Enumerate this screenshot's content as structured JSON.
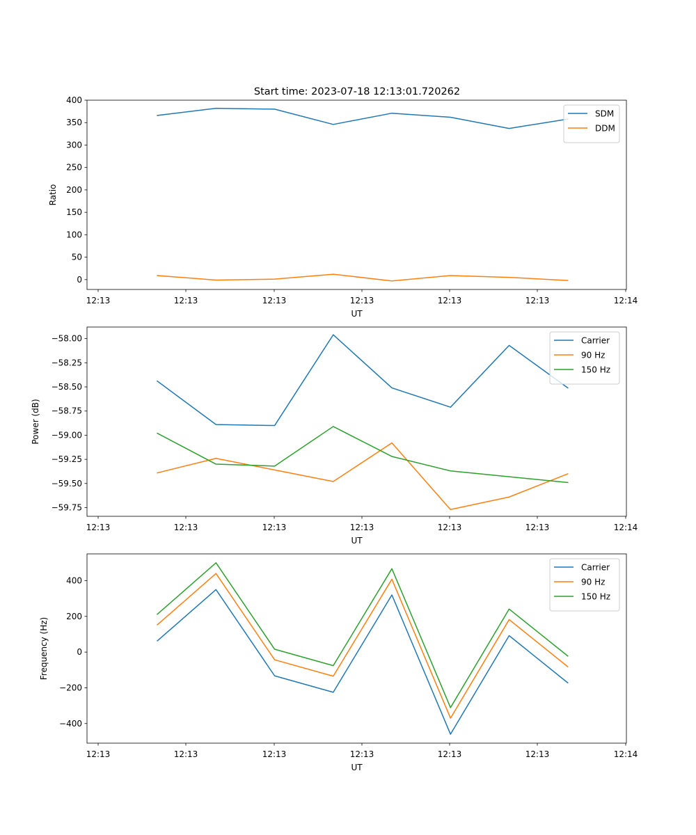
{
  "figure": {
    "title": "Start time: 2023-07-18 12:13:01.720262"
  },
  "chart_data": [
    {
      "type": "line",
      "title": "Start time: 2023-07-18 12:13:01.720262",
      "xlabel": "UT",
      "ylabel": "Ratio",
      "x_tick_labels": [
        "12:13",
        "12:13",
        "12:13",
        "12:13",
        "12:13",
        "12:13",
        "12:14"
      ],
      "x": [
        1,
        2,
        3,
        4,
        5,
        6,
        7,
        8
      ],
      "xlim": [
        -0.2,
        9.0
      ],
      "ylim": [
        -22,
        400
      ],
      "yticks": [
        0,
        50,
        100,
        150,
        200,
        250,
        300,
        350,
        400
      ],
      "y_tick_labels": [
        "0",
        "50",
        "100",
        "150",
        "200",
        "250",
        "300",
        "350",
        "400"
      ],
      "legend_location": "upper right",
      "series": [
        {
          "name": "SDM",
          "color": "#1f77b4",
          "values": [
            366,
            382,
            380,
            346,
            371,
            362,
            337,
            358
          ]
        },
        {
          "name": "DDM",
          "color": "#ff7f0e",
          "values": [
            9,
            -1,
            1,
            12,
            -3,
            9,
            5,
            -2
          ]
        }
      ]
    },
    {
      "type": "line",
      "title": "",
      "xlabel": "UT",
      "ylabel": "Power (dB)",
      "x_tick_labels": [
        "12:13",
        "12:13",
        "12:13",
        "12:13",
        "12:13",
        "12:13",
        "12:14"
      ],
      "x": [
        1,
        2,
        3,
        4,
        5,
        6,
        7,
        8
      ],
      "xlim": [
        -0.2,
        9.0
      ],
      "ylim": [
        -59.84,
        -57.88
      ],
      "yticks": [
        -58.0,
        -58.25,
        -58.5,
        -58.75,
        -59.0,
        -59.25,
        -59.5,
        -59.75
      ],
      "y_tick_labels": [
        "−58.00",
        "−58.25",
        "−58.50",
        "−58.75",
        "−59.00",
        "−59.25",
        "−59.50",
        "−59.75"
      ],
      "legend_location": "upper right",
      "series": [
        {
          "name": "Carrier",
          "color": "#1f77b4",
          "values": [
            -58.44,
            -58.89,
            -58.9,
            -57.96,
            -58.51,
            -58.71,
            -58.07,
            -58.51
          ]
        },
        {
          "name": "90 Hz",
          "color": "#ff7f0e",
          "values": [
            -59.39,
            -59.24,
            -59.36,
            -59.48,
            -59.08,
            -59.77,
            -59.64,
            -59.4
          ]
        },
        {
          "name": "150 Hz",
          "color": "#2ca02c",
          "values": [
            -58.98,
            -59.3,
            -59.32,
            -58.91,
            -59.22,
            -59.37,
            -59.43,
            -59.49
          ]
        }
      ]
    },
    {
      "type": "line",
      "title": "",
      "xlabel": "UT",
      "ylabel": "Frequency (Hz)",
      "x_tick_labels": [
        "12:13",
        "12:13",
        "12:13",
        "12:13",
        "12:13",
        "12:13",
        "12:14"
      ],
      "x": [
        1,
        2,
        3,
        4,
        5,
        6,
        7,
        8
      ],
      "xlim": [
        -0.2,
        9.0
      ],
      "ylim": [
        -510,
        550
      ],
      "yticks": [
        -400,
        -200,
        0,
        200,
        400
      ],
      "y_tick_labels": [
        "−400",
        "−200",
        "0",
        "200",
        "400"
      ],
      "legend_location": "upper right",
      "series": [
        {
          "name": "Carrier",
          "color": "#1f77b4",
          "values": [
            63,
            350,
            -133,
            -225,
            320,
            -460,
            92,
            -172
          ]
        },
        {
          "name": "90 Hz",
          "color": "#ff7f0e",
          "values": [
            153,
            440,
            -43,
            -135,
            408,
            -370,
            182,
            -82
          ]
        },
        {
          "name": "150 Hz",
          "color": "#2ca02c",
          "values": [
            212,
            500,
            16,
            -76,
            467,
            -311,
            241,
            -22
          ]
        }
      ]
    }
  ]
}
